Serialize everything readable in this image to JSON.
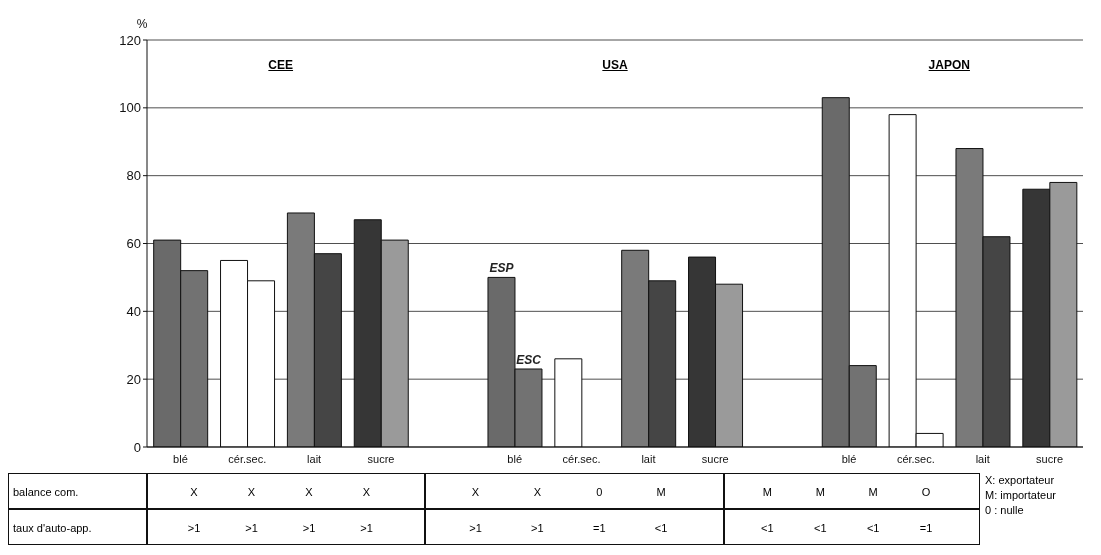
{
  "chart_data": {
    "type": "bar",
    "ylabel": "%",
    "categories": [
      "blé",
      "cér.sec.",
      "lait",
      "sucre",
      null,
      "blé",
      "cér.sec.",
      "lait",
      "sucre",
      null,
      "blé",
      "cér.sec.",
      "lait",
      "sucre"
    ],
    "series": [
      {
        "name": "ESP",
        "values": [
          61,
          55,
          69,
          67,
          null,
          50,
          26,
          58,
          56,
          null,
          103,
          98,
          88,
          76
        ],
        "colors": [
          "#6a6a6a",
          "#ffffff",
          "#7a7a7a",
          "#363636",
          null,
          "#6a6a6a",
          "#ffffff",
          "#7a7a7a",
          "#363636",
          null,
          "#6a6a6a",
          "#ffffff",
          "#7a7a7a",
          "#363636"
        ]
      },
      {
        "name": "ESC",
        "values": [
          52,
          49,
          57,
          61,
          null,
          23,
          null,
          49,
          48,
          null,
          24,
          4,
          62,
          78
        ],
        "colors": [
          "#727272",
          "#ffffff",
          "#454545",
          "#9a9a9a",
          null,
          "#727272",
          "#ffffff",
          "#454545",
          "#9a9a9a",
          null,
          "#727272",
          "#ffffff",
          "#454545",
          "#9a9a9a"
        ]
      }
    ],
    "ylim": [
      0,
      120
    ],
    "yticks": [
      0,
      20,
      40,
      60,
      80,
      100,
      120
    ],
    "grid": "y",
    "legend": false,
    "annotations": [
      "CEE",
      "USA",
      "JAPON",
      "balance com.",
      "X",
      "X",
      "X",
      "X",
      "X",
      "X",
      "0",
      "M",
      "M",
      "M",
      "M",
      "O",
      "taux d'auto-app.",
      ">1",
      ">1",
      ">1",
      ">1",
      ">1",
      ">1",
      "=1",
      "<1",
      "<1",
      "<1",
      "<1",
      "=1",
      "X: exportateur",
      "M: importateur",
      "0 : nulle"
    ]
  }
}
